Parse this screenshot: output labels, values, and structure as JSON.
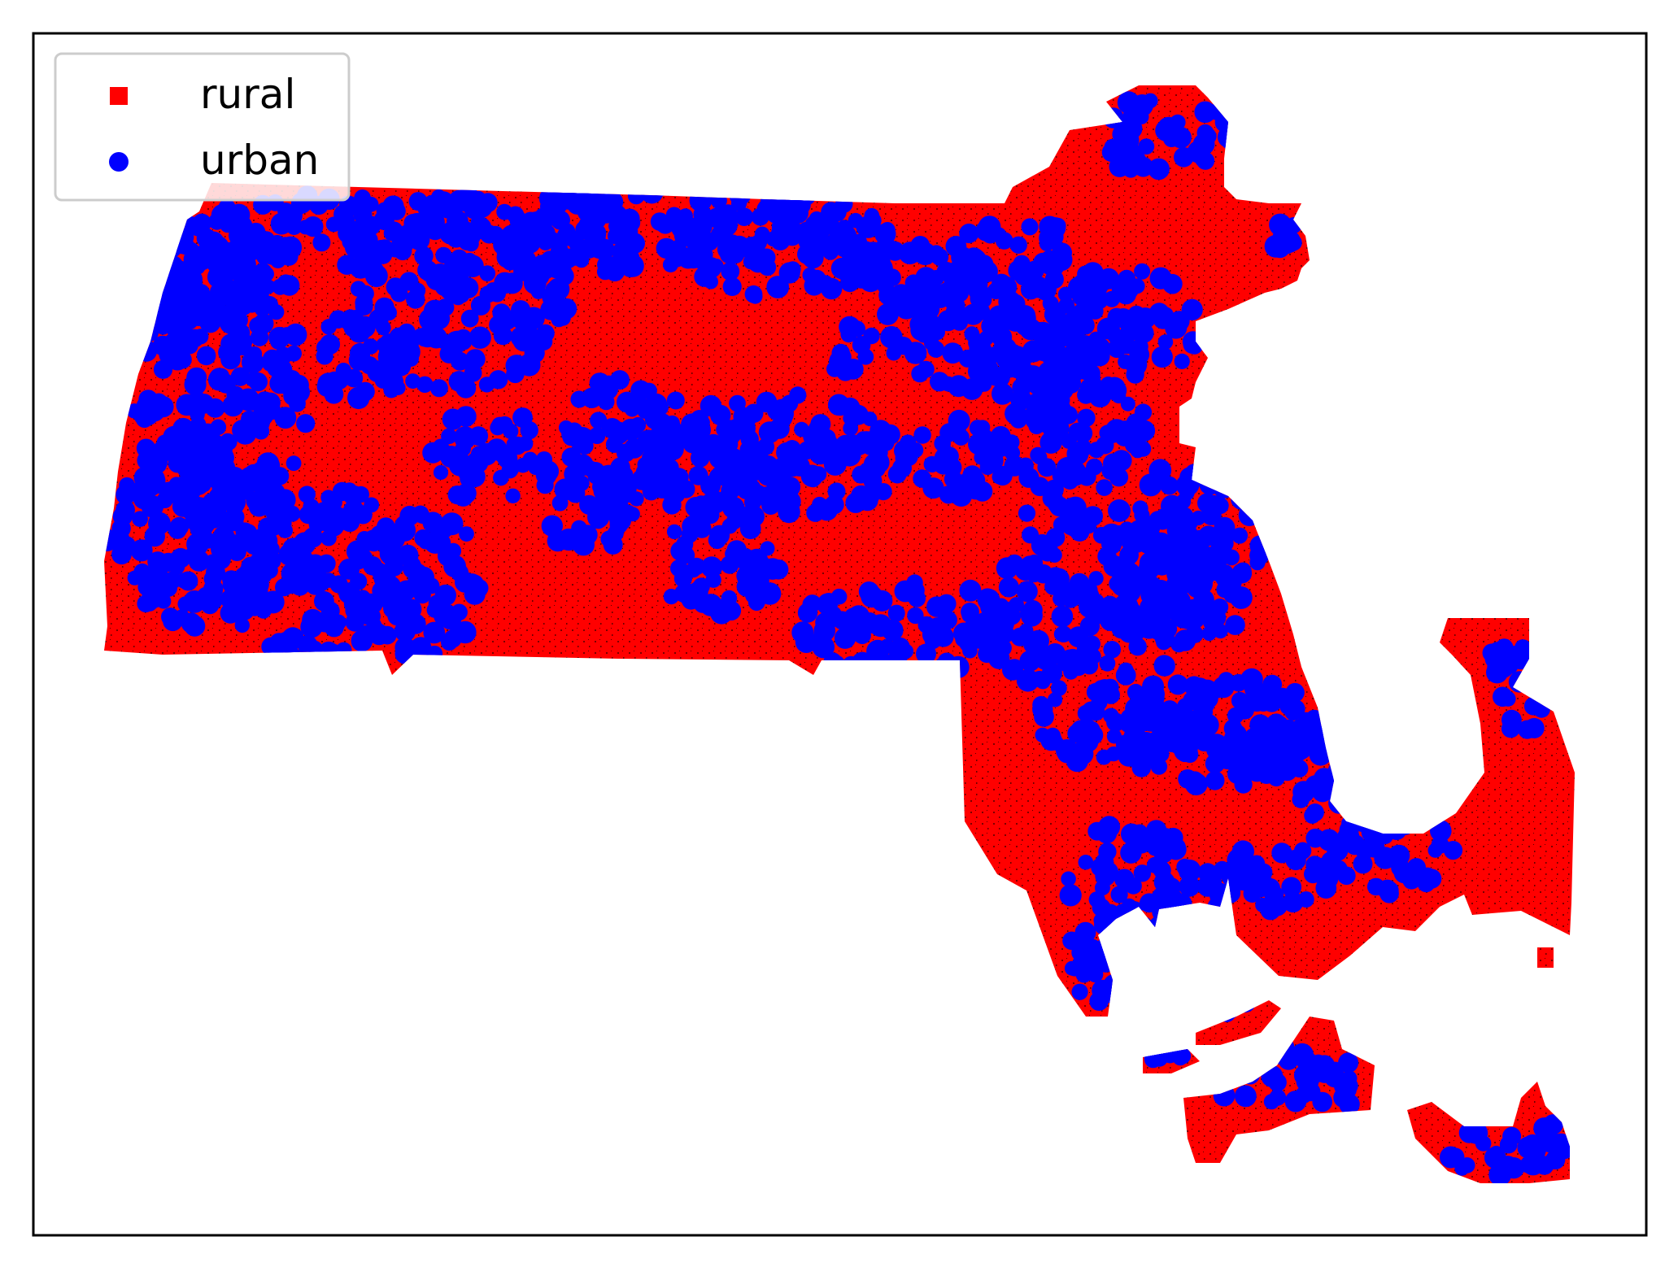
{
  "chart_data": {
    "type": "scatter",
    "title": "",
    "xlabel": "",
    "ylabel": "",
    "ticks": "none",
    "grid": false,
    "legend": {
      "placement": "top-left",
      "entries": [
        {
          "label": "rural",
          "marker": "square",
          "color": "#ff0000"
        },
        {
          "label": "urban",
          "marker": "circle",
          "color": "#0000ff"
        }
      ]
    },
    "series": [
      {
        "name": "rural",
        "color": "#ff0000",
        "marker": "square"
      },
      {
        "name": "urban",
        "color": "#0000ff",
        "marker": "circle"
      }
    ]
  }
}
